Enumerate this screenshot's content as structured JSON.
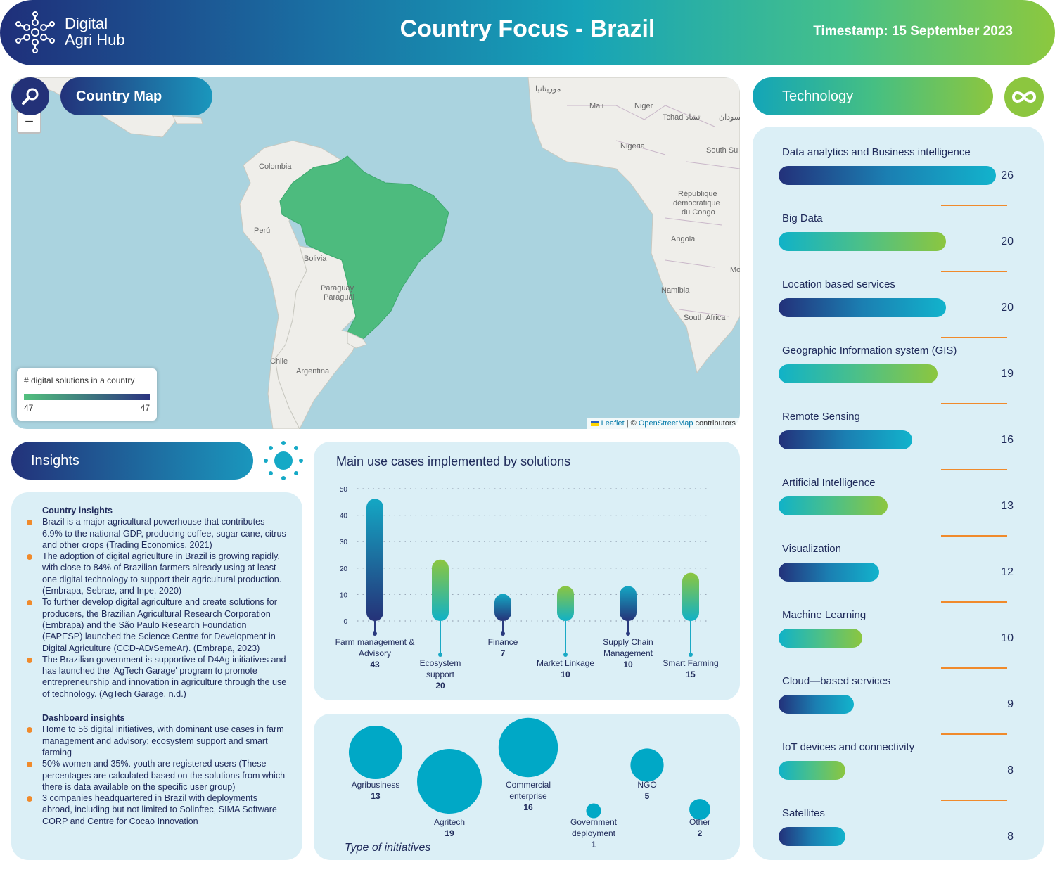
{
  "header": {
    "logo_line1": "Digital",
    "logo_line2": "Agri Hub",
    "title": "Country Focus - Brazil",
    "timestamp": "Timestamp: 15 September 2023"
  },
  "map": {
    "section_label": "Country Map",
    "zoom_out": "−",
    "legend_title": "# digital solutions in a country",
    "legend_min": "47",
    "legend_max": "47",
    "attribution_leaflet": "Leaflet",
    "attribution_sep": " | © ",
    "attribution_osm": "OpenStreetMap",
    "attribution_tail": " contributors",
    "labels": {
      "mauritania": "موريتانيا",
      "mali": "Mali",
      "niger": "Niger",
      "tchad": "Tchad تشاد",
      "sudan": "السودان",
      "nigeria": "Nigeria",
      "south_sudan": "South Su",
      "colombia": "Colombia",
      "peru": "Perú",
      "bolivia": "Bolivia",
      "paraguay1": "Paraguay",
      "paraguay2": "Paraguái",
      "chile": "Chile",
      "argentina": "Argentina",
      "congo1": "République",
      "congo2": "démocratique",
      "congo3": "du Congo",
      "angola": "Angola",
      "namibia": "Namibia",
      "south_africa": "South Africa",
      "mo": "Mo"
    },
    "colors": {
      "brazil": "#4dbb7e",
      "ocean": "#aad3df",
      "land": "#efeeea"
    }
  },
  "technology": {
    "section_label": "Technology",
    "items": [
      {
        "label": "Data analytics and Business intelligence",
        "value": 26,
        "style": "blue"
      },
      {
        "label": "Big Data",
        "value": 20,
        "style": "green"
      },
      {
        "label": "Location based services",
        "value": 20,
        "style": "blue"
      },
      {
        "label": "Geographic Information system (GIS)",
        "value": 19,
        "style": "green"
      },
      {
        "label": "Remote Sensing",
        "value": 16,
        "style": "blue"
      },
      {
        "label": "Artificial Intelligence",
        "value": 13,
        "style": "green"
      },
      {
        "label": "Visualization",
        "value": 12,
        "style": "blue"
      },
      {
        "label": "Machine Learning",
        "value": 10,
        "style": "green"
      },
      {
        "label": "Cloud—based services",
        "value": 9,
        "style": "blue"
      },
      {
        "label": "IoT devices and connectivity",
        "value": 8,
        "style": "green"
      },
      {
        "label": "Satellites",
        "value": 8,
        "style": "blue"
      }
    ]
  },
  "insights": {
    "section_label": "Insights",
    "country_heading": "Country insights",
    "country": [
      "Brazil is a major agricultural powerhouse that contributes 6.9% to the national GDP, producing coffee, sugar cane, citrus and other crops (Trading Economics, 2021)",
      "The adoption of digital agriculture in Brazil is growing rapidly, with close to 84% of Brazilian farmers already using at least one digital technology to support their agricultural production. (Embrapa, Sebrae, and Inpe, 2020)",
      "To further develop digital agriculture and create solutions for producers, the Brazilian Agricultural Research Corporation (Embrapa) and the São Paulo Research Foundation (FAPESP) launched the Science Centre for Development in Digital Agriculture (CCD-AD/SemeAr). (Embrapa, 2023)",
      "The Brazilian government is supportive of D4Ag initiatives and has launched the 'AgTech Garage' program to promote entrepreneurship and innovation in agriculture through the use of technology. (AgTech Garage, n.d.)"
    ],
    "dashboard_heading": "Dashboard insights",
    "dashboard": [
      "Home to 56 digital initiatives, with dominant use cases in farm management and advisory; ecosystem support and smart farming",
      "50% women and 35%. youth are registered users (These percentages are calculated based on the solutions from which there is data available on the specific user group)",
      "3 companies headquartered in Brazil with deployments abroad, including but not limited to Solinftec, SIMA Software CORP and Centre for Cocao Innovation"
    ]
  },
  "chart_data": [
    {
      "type": "bar",
      "title": "Main use cases implemented by solutions",
      "categories": [
        [
          "Farm management &",
          "Advisory"
        ],
        [
          "Ecosystem",
          "support"
        ],
        [
          "Finance"
        ],
        [
          "Market Linkage"
        ],
        [
          "Supply Chain",
          "Management"
        ],
        [
          "Smart Farming"
        ]
      ],
      "values": [
        43,
        20,
        7,
        10,
        10,
        15
      ],
      "yticks": [
        0,
        10,
        20,
        30,
        40,
        50
      ],
      "ylim": [
        0,
        50
      ],
      "grid": true
    },
    {
      "type": "scatter",
      "title": "Type of initiatives",
      "categories": [
        [
          "Agribusiness"
        ],
        [
          "Agritech"
        ],
        [
          "Commercial",
          "enterprise"
        ],
        [
          "Government",
          "deployment"
        ],
        [
          "NGO"
        ],
        [
          "Other"
        ]
      ],
      "values": [
        13,
        19,
        16,
        1,
        5,
        2
      ],
      "color": "#00a8c6"
    }
  ]
}
